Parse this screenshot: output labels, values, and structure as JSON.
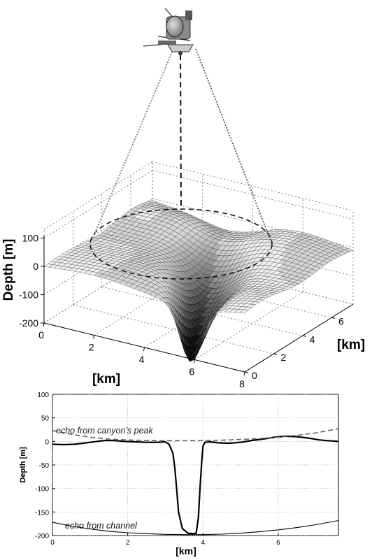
{
  "chart_data": [
    {
      "type": "surface",
      "xlabel": "[km]",
      "ylabel": "[km]",
      "zlabel": "Depth [m]",
      "xticks": [
        "0",
        "2",
        "4",
        "6",
        "8"
      ],
      "yticks": [
        "0",
        "2",
        "4",
        "6"
      ],
      "zticks": [
        "100",
        "0",
        "-100",
        "-200"
      ],
      "xlim": [
        0,
        8
      ],
      "ylim": [
        0,
        7.5
      ],
      "zlim": [
        -200,
        100
      ],
      "canyon_depth": -195,
      "colors": {
        "surface": "#e8e8e8",
        "canyon": "#111111",
        "mesh": "#3a3a3a"
      },
      "icon": "satellite-icon"
    },
    {
      "type": "line",
      "xlabel": "[km]",
      "ylabel": "Depth [m]",
      "xlim": [
        0,
        7.6
      ],
      "ylim": [
        -200,
        100
      ],
      "xticks": [
        "0",
        "2",
        "4",
        "6"
      ],
      "yticks": [
        "100",
        "50",
        "0",
        "-50",
        "-100",
        "-150",
        "-200"
      ],
      "grid": true,
      "series": [
        {
          "x": [
            0,
            0.3,
            0.6,
            0.9,
            1.2,
            1.4,
            1.6,
            1.9,
            2.2,
            2.5,
            2.8,
            3.0,
            3.1,
            3.2,
            3.25,
            3.3,
            3.35,
            3.45,
            3.6,
            3.75,
            3.82,
            3.88,
            3.92,
            3.97,
            4.0,
            4.05,
            4.2,
            4.4,
            4.7,
            5.0,
            5.3,
            5.6,
            5.9,
            6.2,
            6.5,
            6.8,
            7.1,
            7.4,
            7.6
          ],
          "y": [
            -6,
            -7,
            -6,
            -3,
            0,
            2,
            2,
            0,
            -1,
            -2,
            -2,
            -1,
            -6,
            -25,
            -55,
            -100,
            -150,
            -185,
            -195,
            -196,
            -195,
            -160,
            -100,
            -40,
            -10,
            -2,
            -1,
            -3,
            -4,
            -2,
            2,
            5,
            9,
            11,
            10,
            7,
            3,
            1,
            0
          ]
        },
        {
          "label": "echo from canyon’s peak",
          "x": [
            0,
            0.5,
            1.0,
            1.5,
            2.0,
            2.5,
            3.0,
            3.5,
            4.0,
            4.5,
            5.0,
            5.5,
            6.0,
            6.5,
            7.0,
            7.6
          ],
          "y": [
            23,
            15,
            9,
            5,
            3,
            2,
            1.5,
            1.5,
            1.8,
            2.5,
            4,
            6,
            9,
            13,
            18,
            27
          ]
        },
        {
          "label": "echo from channel",
          "x": [
            0,
            0.5,
            1.0,
            1.5,
            2.0,
            2.5,
            3.0,
            3.5,
            4.0,
            4.5,
            5.0,
            5.5,
            6.0,
            6.5,
            7.0,
            7.6
          ],
          "y": [
            -172,
            -180,
            -186,
            -191,
            -194,
            -196,
            -197.5,
            -198,
            -198,
            -197,
            -195,
            -192,
            -188,
            -183,
            -177,
            -168
          ]
        }
      ]
    }
  ]
}
